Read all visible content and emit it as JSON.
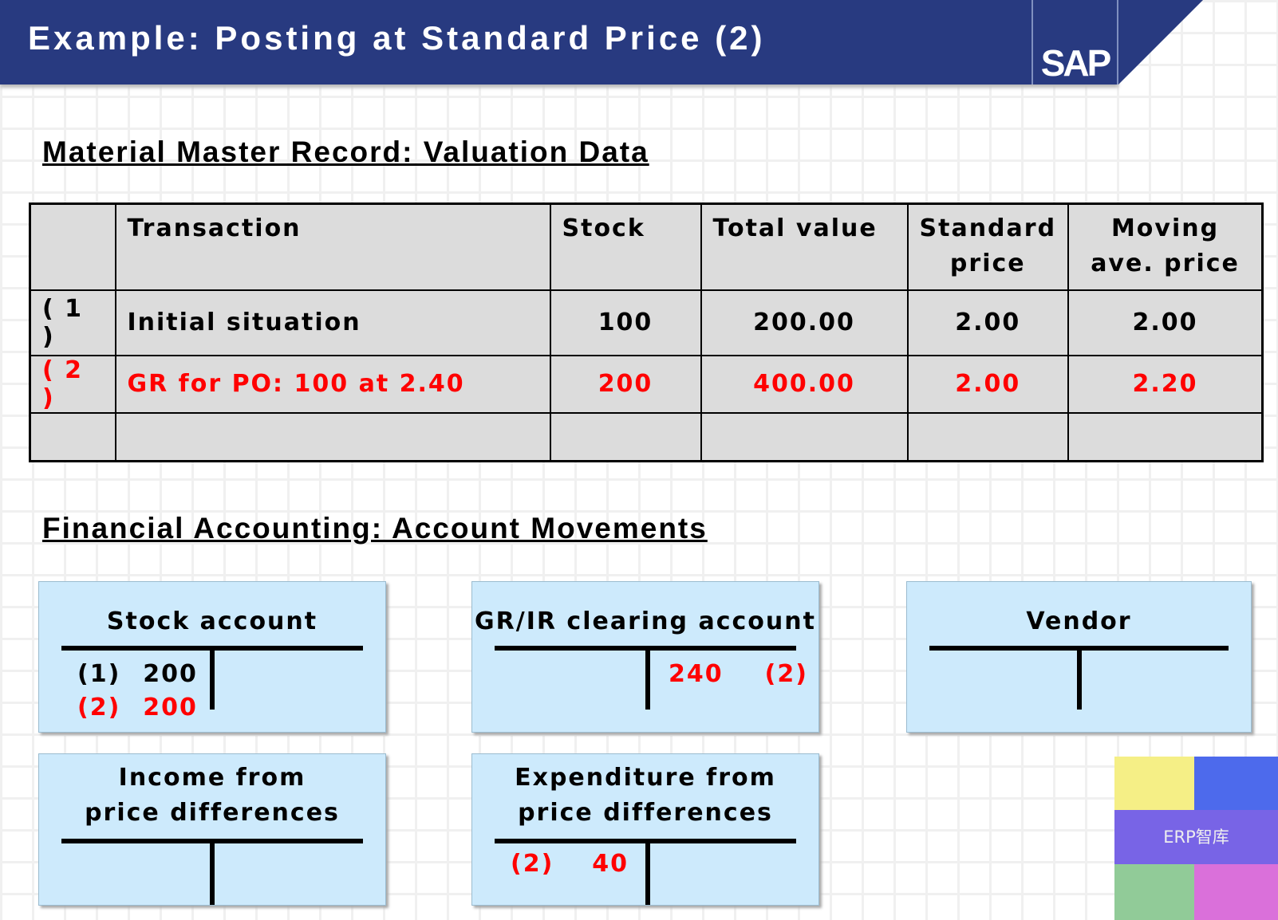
{
  "title": "Example: Posting at Standard Price (2)",
  "logo": "SAP",
  "section1": "Material Master Record: Valuation Data",
  "table": {
    "headers": [
      "",
      "Transaction",
      "Stock",
      "Total value",
      "Standard price",
      "Moving ave. price"
    ],
    "rows": [
      [
        "( 1 )",
        "Initial situation",
        "100",
        "200.00",
        "2.00",
        "2.00"
      ],
      [
        "( 2 )",
        "GR for PO: 100 at 2.40",
        "200",
        "400.00",
        "2.00",
        "2.20"
      ],
      [
        "",
        "",
        "",
        "",
        "",
        ""
      ]
    ]
  },
  "section2": "Financial Accounting: Account Movements",
  "accounts": {
    "stock": {
      "name": "Stock account",
      "debit": [
        {
          "ref": "(1)",
          "amt": "200"
        },
        {
          "ref": "(2)",
          "amt": "200"
        }
      ]
    },
    "grir": {
      "name": "GR/IR clearing account",
      "credit": {
        "amt": "240",
        "ref": "(2)"
      }
    },
    "vendor": {
      "name": "Vendor"
    },
    "income": {
      "name1": "Income from",
      "name2": "price differences"
    },
    "expenditure": {
      "name1": "Expenditure from",
      "name2": "price differences",
      "debit": {
        "ref": "(2)",
        "amt": "40"
      }
    }
  },
  "watermark": "ERP智库"
}
